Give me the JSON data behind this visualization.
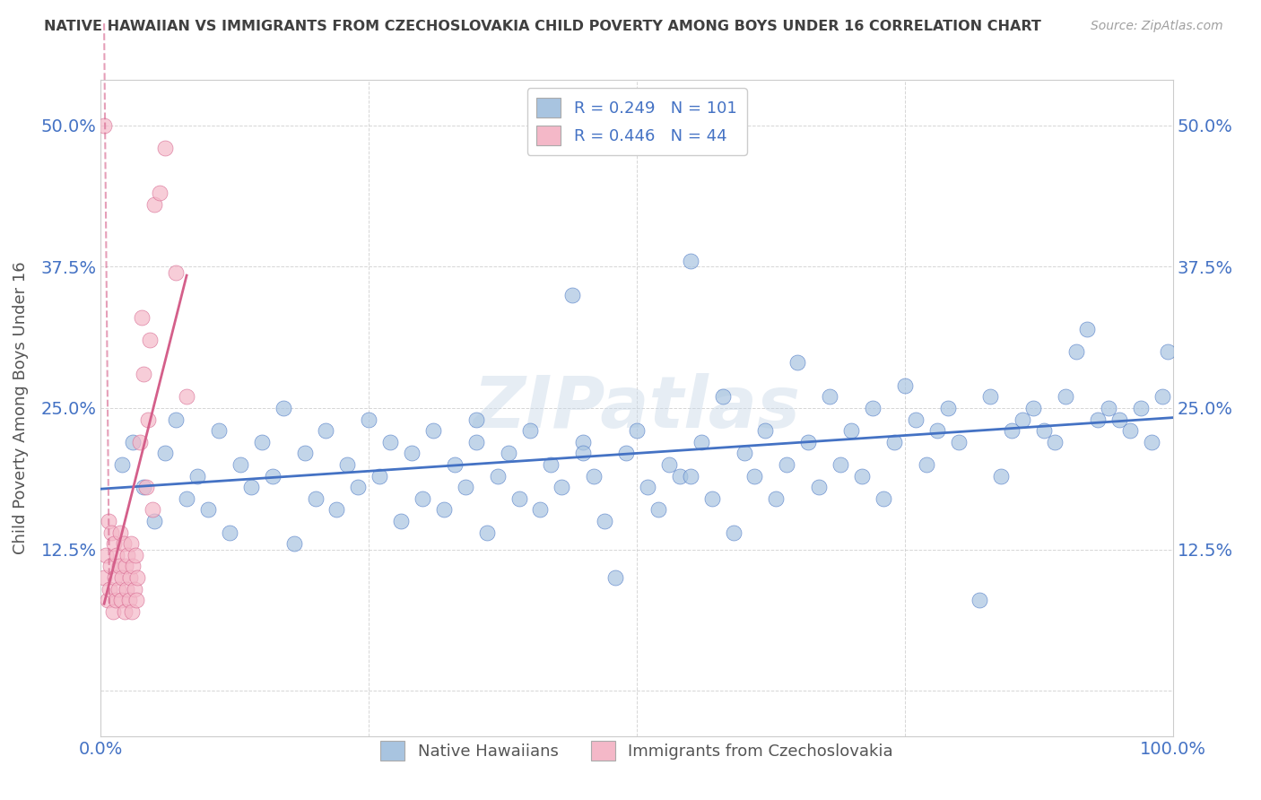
{
  "title": "NATIVE HAWAIIAN VS IMMIGRANTS FROM CZECHOSLOVAKIA CHILD POVERTY AMONG BOYS UNDER 16 CORRELATION CHART",
  "source": "Source: ZipAtlas.com",
  "xlabel": "",
  "ylabel": "Child Poverty Among Boys Under 16",
  "xlim": [
    0.0,
    1.0
  ],
  "ylim": [
    -0.04,
    0.54
  ],
  "x_ticks": [
    0.0,
    0.25,
    0.5,
    0.75,
    1.0
  ],
  "x_tick_labels": [
    "0.0%",
    "",
    "",
    "",
    "100.0%"
  ],
  "y_ticks": [
    0.0,
    0.125,
    0.25,
    0.375,
    0.5
  ],
  "y_tick_labels": [
    "",
    "12.5%",
    "25.0%",
    "37.5%",
    "50.0%"
  ],
  "legend_r1": "R = 0.249",
  "legend_n1": "N = 101",
  "legend_r2": "R = 0.446",
  "legend_n2": "N = 44",
  "blue_color": "#a8c4e0",
  "pink_color": "#f4b8c8",
  "line_blue": "#4472c4",
  "line_pink": "#d45f8a",
  "title_color": "#404040",
  "source_color": "#a0a0a0",
  "label_color": "#4472c4",
  "watermark": "ZIPatlas",
  "blue_scatter_x": [
    0.02,
    0.03,
    0.04,
    0.05,
    0.06,
    0.07,
    0.08,
    0.09,
    0.1,
    0.11,
    0.12,
    0.13,
    0.14,
    0.15,
    0.16,
    0.17,
    0.18,
    0.19,
    0.2,
    0.21,
    0.22,
    0.23,
    0.24,
    0.25,
    0.26,
    0.27,
    0.28,
    0.29,
    0.3,
    0.31,
    0.32,
    0.33,
    0.34,
    0.35,
    0.36,
    0.37,
    0.38,
    0.39,
    0.4,
    0.41,
    0.42,
    0.43,
    0.44,
    0.45,
    0.46,
    0.47,
    0.48,
    0.49,
    0.5,
    0.51,
    0.52,
    0.53,
    0.54,
    0.55,
    0.56,
    0.57,
    0.58,
    0.59,
    0.6,
    0.61,
    0.62,
    0.63,
    0.64,
    0.65,
    0.66,
    0.67,
    0.68,
    0.69,
    0.7,
    0.71,
    0.72,
    0.73,
    0.74,
    0.75,
    0.76,
    0.77,
    0.78,
    0.79,
    0.8,
    0.82,
    0.83,
    0.84,
    0.85,
    0.86,
    0.87,
    0.88,
    0.89,
    0.9,
    0.91,
    0.92,
    0.93,
    0.94,
    0.95,
    0.96,
    0.97,
    0.98,
    0.99,
    0.995,
    0.35,
    0.45,
    0.55
  ],
  "blue_scatter_y": [
    0.2,
    0.22,
    0.18,
    0.15,
    0.21,
    0.24,
    0.17,
    0.19,
    0.16,
    0.23,
    0.14,
    0.2,
    0.18,
    0.22,
    0.19,
    0.25,
    0.13,
    0.21,
    0.17,
    0.23,
    0.16,
    0.2,
    0.18,
    0.24,
    0.19,
    0.22,
    0.15,
    0.21,
    0.17,
    0.23,
    0.16,
    0.2,
    0.18,
    0.22,
    0.14,
    0.19,
    0.21,
    0.17,
    0.23,
    0.16,
    0.2,
    0.18,
    0.35,
    0.22,
    0.19,
    0.15,
    0.1,
    0.21,
    0.23,
    0.18,
    0.16,
    0.2,
    0.19,
    0.38,
    0.22,
    0.17,
    0.26,
    0.14,
    0.21,
    0.19,
    0.23,
    0.17,
    0.2,
    0.29,
    0.22,
    0.18,
    0.26,
    0.2,
    0.23,
    0.19,
    0.25,
    0.17,
    0.22,
    0.27,
    0.24,
    0.2,
    0.23,
    0.25,
    0.22,
    0.08,
    0.26,
    0.19,
    0.23,
    0.24,
    0.25,
    0.23,
    0.22,
    0.26,
    0.3,
    0.32,
    0.24,
    0.25,
    0.24,
    0.23,
    0.25,
    0.22,
    0.26,
    0.3,
    0.24,
    0.21,
    0.19
  ],
  "pink_scatter_x": [
    0.003,
    0.005,
    0.006,
    0.007,
    0.008,
    0.009,
    0.01,
    0.011,
    0.012,
    0.013,
    0.014,
    0.015,
    0.016,
    0.017,
    0.018,
    0.019,
    0.02,
    0.021,
    0.022,
    0.023,
    0.024,
    0.025,
    0.026,
    0.027,
    0.028,
    0.029,
    0.03,
    0.031,
    0.032,
    0.033,
    0.034,
    0.036,
    0.038,
    0.04,
    0.042,
    0.044,
    0.046,
    0.048,
    0.05,
    0.055,
    0.06,
    0.07,
    0.08,
    0.003
  ],
  "pink_scatter_y": [
    0.1,
    0.12,
    0.08,
    0.15,
    0.09,
    0.11,
    0.14,
    0.07,
    0.13,
    0.1,
    0.08,
    0.12,
    0.09,
    0.11,
    0.14,
    0.08,
    0.1,
    0.13,
    0.07,
    0.11,
    0.09,
    0.12,
    0.08,
    0.1,
    0.13,
    0.07,
    0.11,
    0.09,
    0.12,
    0.08,
    0.1,
    0.22,
    0.33,
    0.28,
    0.18,
    0.24,
    0.31,
    0.16,
    0.43,
    0.44,
    0.48,
    0.37,
    0.26,
    0.5
  ]
}
